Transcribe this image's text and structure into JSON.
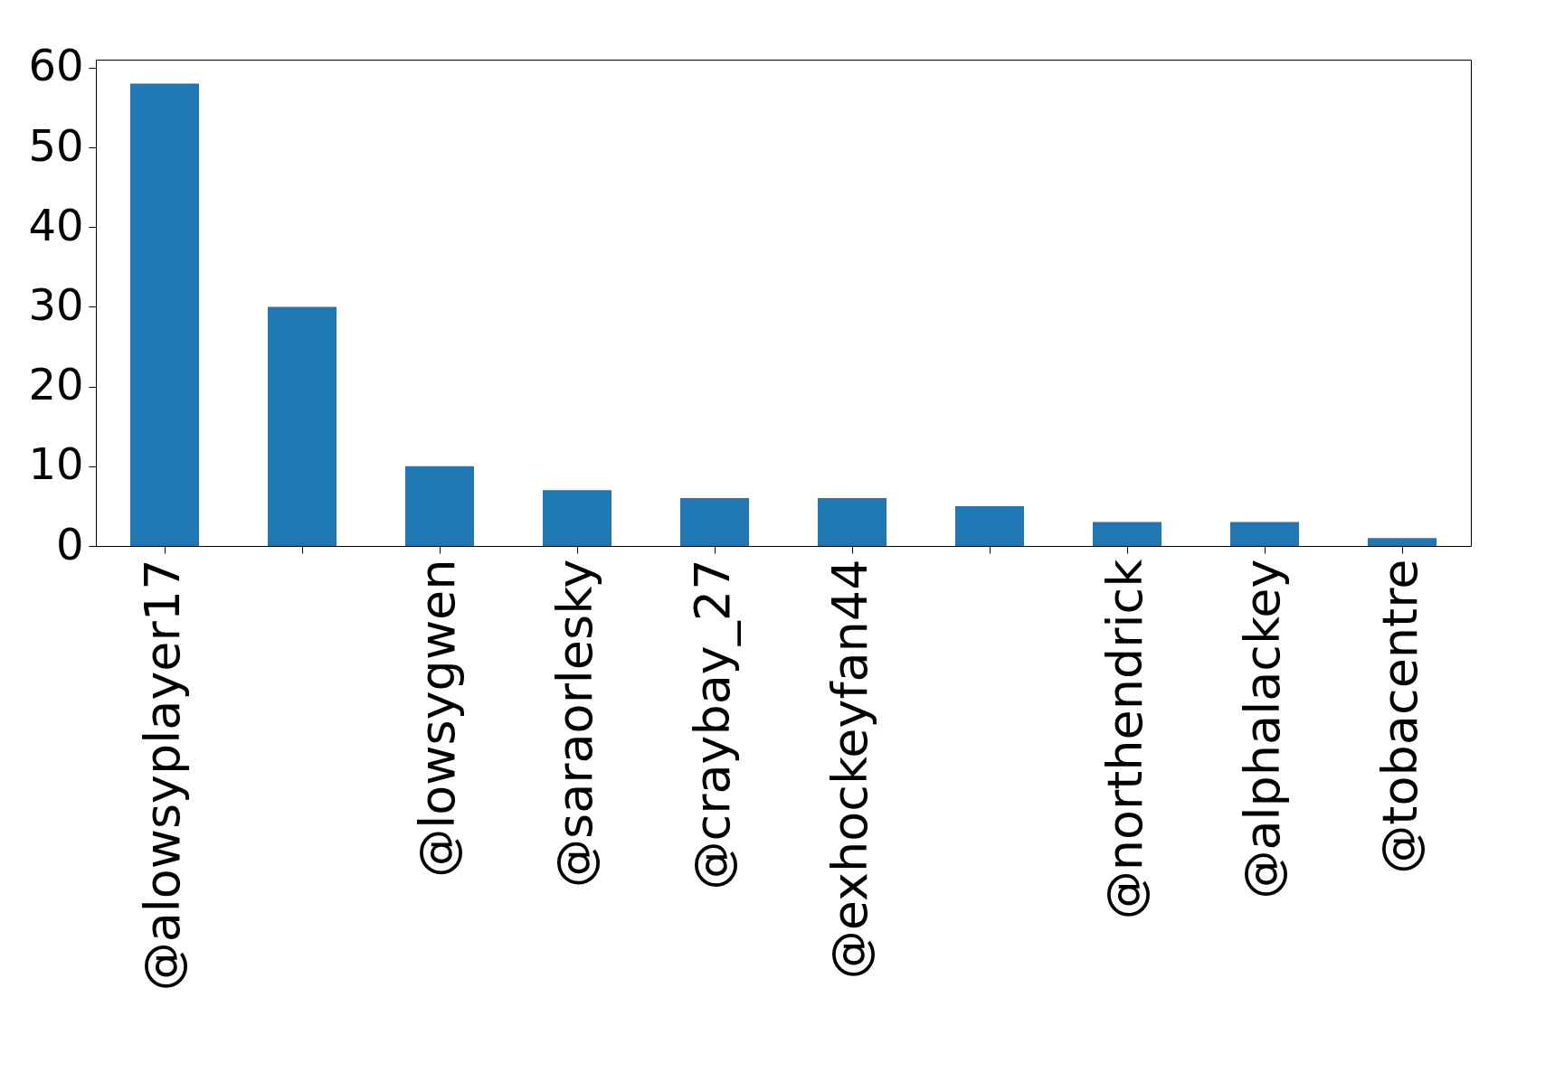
{
  "chart_data": {
    "type": "bar",
    "categories": [
      "@alowsyplayer17",
      null,
      "@lowsygwen",
      "@saraorlesky",
      "@craybay_27",
      "@exhockeyfan44",
      null,
      "@northendrick",
      "@alphalackey",
      "@tobacentre"
    ],
    "values": [
      58,
      30,
      10,
      7,
      6,
      6,
      5,
      3,
      3,
      1
    ],
    "color": "#1f77b4",
    "ylim": [
      0,
      61
    ],
    "yticks": [
      0,
      10,
      20,
      30,
      40,
      50,
      60
    ],
    "grid": false
  }
}
